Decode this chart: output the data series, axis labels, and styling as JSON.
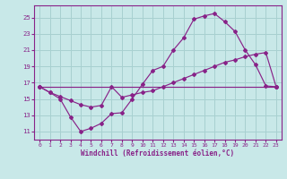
{
  "xlabel": "Windchill (Refroidissement éolien,°C)",
  "bg_color": "#c8e8e8",
  "line_color": "#882288",
  "grid_color": "#a8d0d0",
  "xlim_min": -0.5,
  "xlim_max": 23.5,
  "ylim_min": 10.0,
  "ylim_max": 26.5,
  "yticks": [
    11,
    13,
    15,
    17,
    19,
    21,
    23,
    25
  ],
  "xticks": [
    0,
    1,
    2,
    3,
    4,
    5,
    6,
    7,
    8,
    9,
    10,
    11,
    12,
    13,
    14,
    15,
    16,
    17,
    18,
    19,
    20,
    21,
    22,
    23
  ],
  "curve1_x": [
    0,
    1,
    2,
    3,
    4,
    5,
    6,
    7,
    8,
    9,
    10,
    11,
    12,
    13,
    14,
    15,
    16,
    17,
    18,
    19,
    20,
    21,
    22,
    23
  ],
  "curve1_y": [
    16.5,
    15.8,
    15.0,
    12.8,
    11.0,
    11.4,
    12.0,
    13.2,
    13.3,
    15.0,
    16.8,
    18.5,
    19.0,
    21.0,
    22.5,
    24.8,
    25.2,
    25.5,
    24.5,
    23.3,
    21.0,
    19.2,
    16.6,
    16.5
  ],
  "curve2_x": [
    0,
    1,
    2,
    3,
    4,
    5,
    6,
    7,
    8,
    9,
    10,
    11,
    12,
    13,
    14,
    15,
    16,
    17,
    18,
    19,
    20,
    21,
    22,
    23
  ],
  "curve2_y": [
    16.5,
    15.8,
    15.3,
    14.8,
    14.3,
    14.0,
    14.2,
    16.5,
    15.2,
    15.5,
    15.8,
    16.0,
    16.5,
    17.0,
    17.5,
    18.0,
    18.5,
    19.0,
    19.5,
    19.8,
    20.2,
    20.5,
    20.7,
    16.5
  ],
  "curve3_x": [
    0,
    23
  ],
  "curve3_y": [
    16.5,
    16.5
  ]
}
